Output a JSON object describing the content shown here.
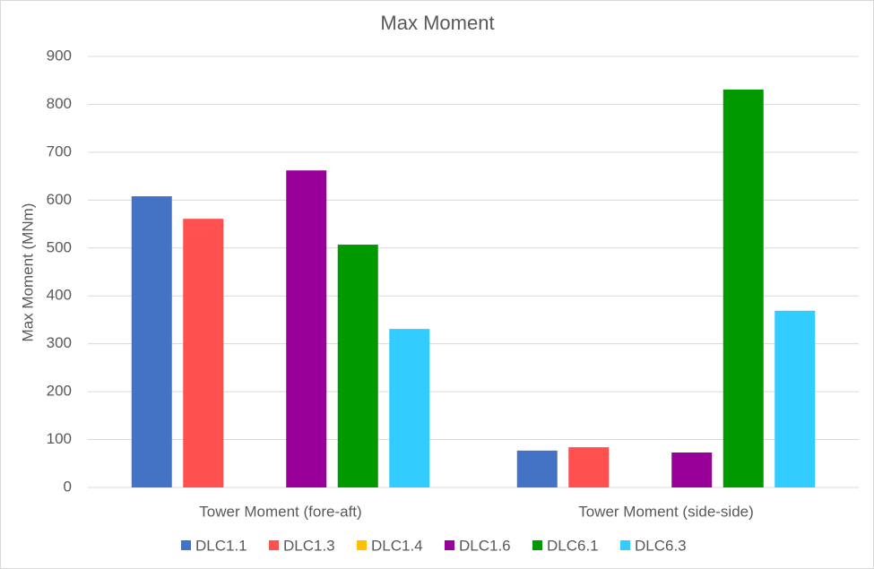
{
  "chart_data": {
    "type": "bar",
    "title": "Max Moment",
    "y_label": "Max Moment (MNm)",
    "categories": [
      "Tower Moment (fore-aft)",
      "Tower Moment (side-side)"
    ],
    "series": [
      {
        "name": "DLC1.1",
        "color": "#4472c4",
        "values": [
          608,
          77
        ]
      },
      {
        "name": "DLC1.3",
        "color": "#ff5050",
        "values": [
          561,
          84
        ]
      },
      {
        "name": "DLC1.4",
        "color": "#ffc000",
        "values": [
          null,
          null
        ]
      },
      {
        "name": "DLC1.6",
        "color": "#990099",
        "values": [
          662,
          73
        ]
      },
      {
        "name": "DLC6.1",
        "color": "#009900",
        "values": [
          507,
          831
        ]
      },
      {
        "name": "DLC6.3",
        "color": "#33ccff",
        "values": [
          331,
          369
        ]
      }
    ],
    "ylim": [
      0,
      900
    ],
    "yticks": [
      0,
      100,
      200,
      300,
      400,
      500,
      600,
      700,
      800,
      900
    ],
    "grid": true,
    "legend": "bottom"
  }
}
